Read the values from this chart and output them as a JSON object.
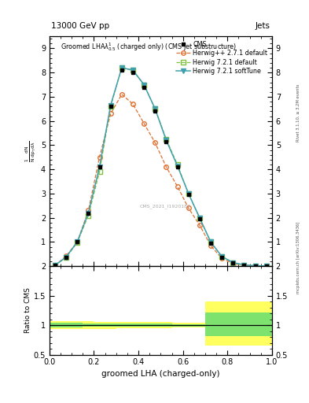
{
  "title": "13000 GeV pp",
  "title_right": "Jets",
  "plot_title": "Groomed LHA$\\lambda^{1}_{0.5}$ (charged only) (CMS jet substructure)",
  "xlabel": "groomed LHA (charged-only)",
  "ylabel_ratio": "Ratio to CMS",
  "watermark": "CMS_2021_I1920187",
  "right_label": "mcplots.cern.ch [arXiv:1306.3436]",
  "rivet_label": "Rivet 3.1.10, ≥ 3.2M events",
  "x_bins": [
    0.0,
    0.05,
    0.1,
    0.15,
    0.2,
    0.25,
    0.3,
    0.35,
    0.4,
    0.45,
    0.5,
    0.55,
    0.6,
    0.65,
    0.7,
    0.75,
    0.8,
    0.85,
    0.9,
    0.95,
    1.0
  ],
  "cms_data": [
    0.05,
    0.38,
    1.0,
    2.2,
    4.1,
    6.6,
    8.1,
    8.0,
    7.4,
    6.4,
    5.15,
    4.1,
    2.95,
    1.95,
    0.95,
    0.38,
    0.13,
    0.045,
    0.018,
    0.008
  ],
  "herwig_pp_271": [
    0.03,
    0.42,
    1.0,
    2.3,
    4.5,
    6.3,
    7.1,
    6.7,
    5.9,
    5.1,
    4.1,
    3.3,
    2.4,
    1.7,
    0.85,
    0.32,
    0.11,
    0.038,
    0.013,
    0.005
  ],
  "herwig_721_default": [
    0.04,
    0.36,
    0.98,
    2.1,
    3.9,
    6.6,
    8.2,
    8.1,
    7.5,
    6.5,
    5.25,
    4.2,
    3.0,
    2.0,
    1.0,
    0.4,
    0.15,
    0.052,
    0.02,
    0.01
  ],
  "herwig_721_softtune": [
    0.04,
    0.38,
    1.0,
    2.2,
    4.1,
    6.65,
    8.2,
    8.1,
    7.5,
    6.5,
    5.2,
    4.15,
    3.0,
    2.0,
    1.0,
    0.4,
    0.15,
    0.052,
    0.02,
    0.01
  ],
  "cms_color": "#000000",
  "herwig_pp_color": "#e07030",
  "herwig_721_default_color": "#80c040",
  "herwig_721_softtune_color": "#40a0b0",
  "ratio_yellow_low": [
    0.93,
    0.93,
    0.93,
    0.93,
    0.94,
    0.94,
    0.95,
    0.95,
    0.95,
    0.95,
    0.95,
    0.96,
    0.96,
    0.96,
    0.65,
    0.65,
    0.65,
    0.65,
    0.65,
    0.65
  ],
  "ratio_yellow_high": [
    1.07,
    1.07,
    1.07,
    1.07,
    1.06,
    1.06,
    1.05,
    1.05,
    1.05,
    1.05,
    1.05,
    1.04,
    1.04,
    1.04,
    1.4,
    1.4,
    1.4,
    1.4,
    1.4,
    1.4
  ],
  "ratio_green_low": [
    0.96,
    0.96,
    0.96,
    0.97,
    0.97,
    0.97,
    0.97,
    0.97,
    0.97,
    0.97,
    0.97,
    0.98,
    0.98,
    0.98,
    0.82,
    0.82,
    0.82,
    0.82,
    0.82,
    0.82
  ],
  "ratio_green_high": [
    1.04,
    1.04,
    1.04,
    1.03,
    1.03,
    1.03,
    1.03,
    1.03,
    1.03,
    1.03,
    1.03,
    1.02,
    1.02,
    1.02,
    1.22,
    1.22,
    1.22,
    1.22,
    1.22,
    1.22
  ],
  "ylim_main": [
    0,
    9.5
  ],
  "ylim_ratio": [
    0.5,
    2.0
  ],
  "yticks_main": [
    1,
    2,
    3,
    4,
    5,
    6,
    7,
    8,
    9
  ],
  "yticks_ratio": [
    0.5,
    1.0,
    1.5,
    2.0
  ],
  "fig_width": 3.93,
  "fig_height": 5.12,
  "dpi": 100
}
